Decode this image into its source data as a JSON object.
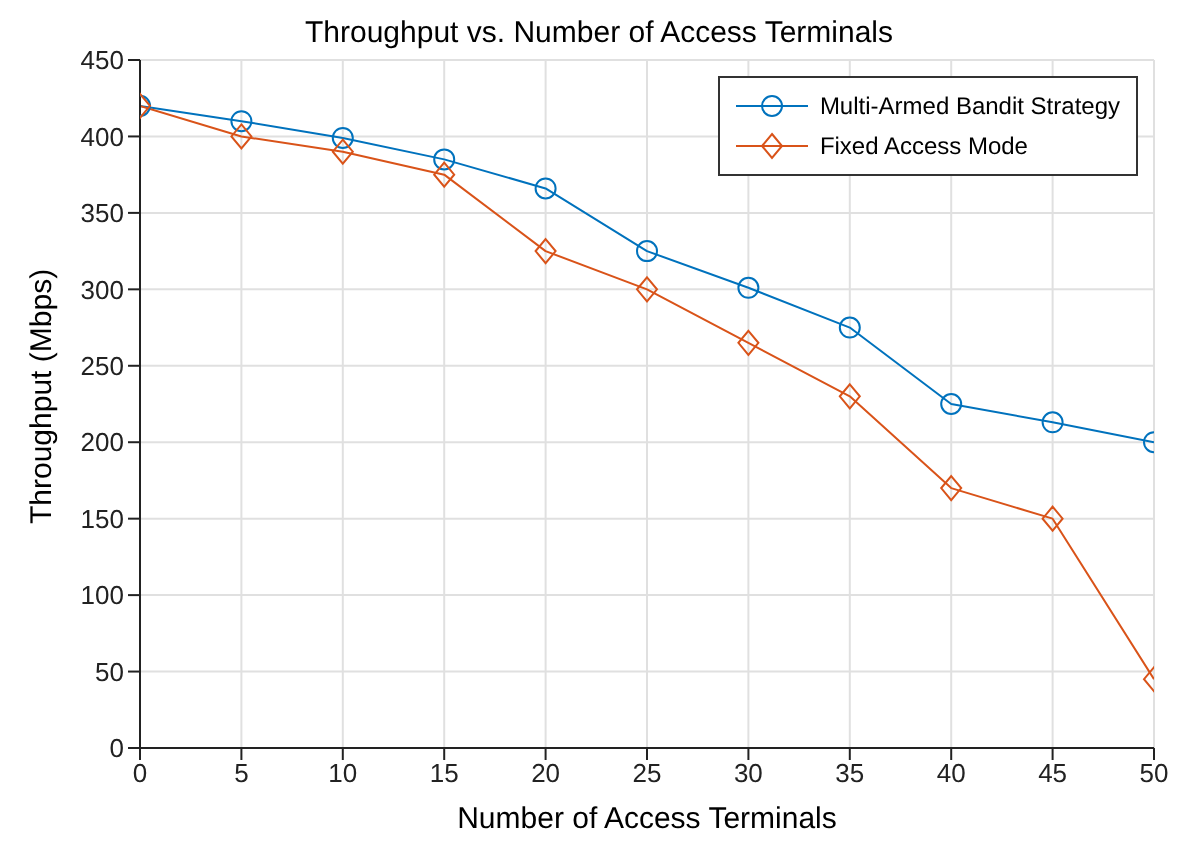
{
  "chart_data": {
    "type": "line",
    "title": "Throughput vs. Number of Access Terminals",
    "xlabel": "Number of Access Terminals",
    "ylabel": "Throughput (Mbps)",
    "x": [
      0,
      5,
      10,
      15,
      20,
      25,
      30,
      35,
      40,
      45,
      50
    ],
    "series": [
      {
        "name": "Multi-Armed Bandit Strategy",
        "color": "#0072bd",
        "marker": "circle",
        "values": [
          420,
          410,
          399,
          385,
          366,
          325,
          301,
          275,
          225,
          213,
          200
        ]
      },
      {
        "name": "Fixed Access Mode",
        "color": "#d95319",
        "marker": "diamond",
        "values": [
          420,
          400,
          390,
          375,
          325,
          300,
          265,
          230,
          170,
          150,
          45
        ]
      }
    ],
    "xlim": [
      0,
      50
    ],
    "xticks": [
      0,
      5,
      10,
      15,
      20,
      25,
      30,
      35,
      40,
      45,
      50
    ],
    "ylim": [
      0,
      450
    ],
    "yticks": [
      0,
      50,
      100,
      150,
      200,
      250,
      300,
      350,
      400,
      450
    ],
    "grid": true,
    "legend": "top right",
    "line_style": "solid"
  }
}
